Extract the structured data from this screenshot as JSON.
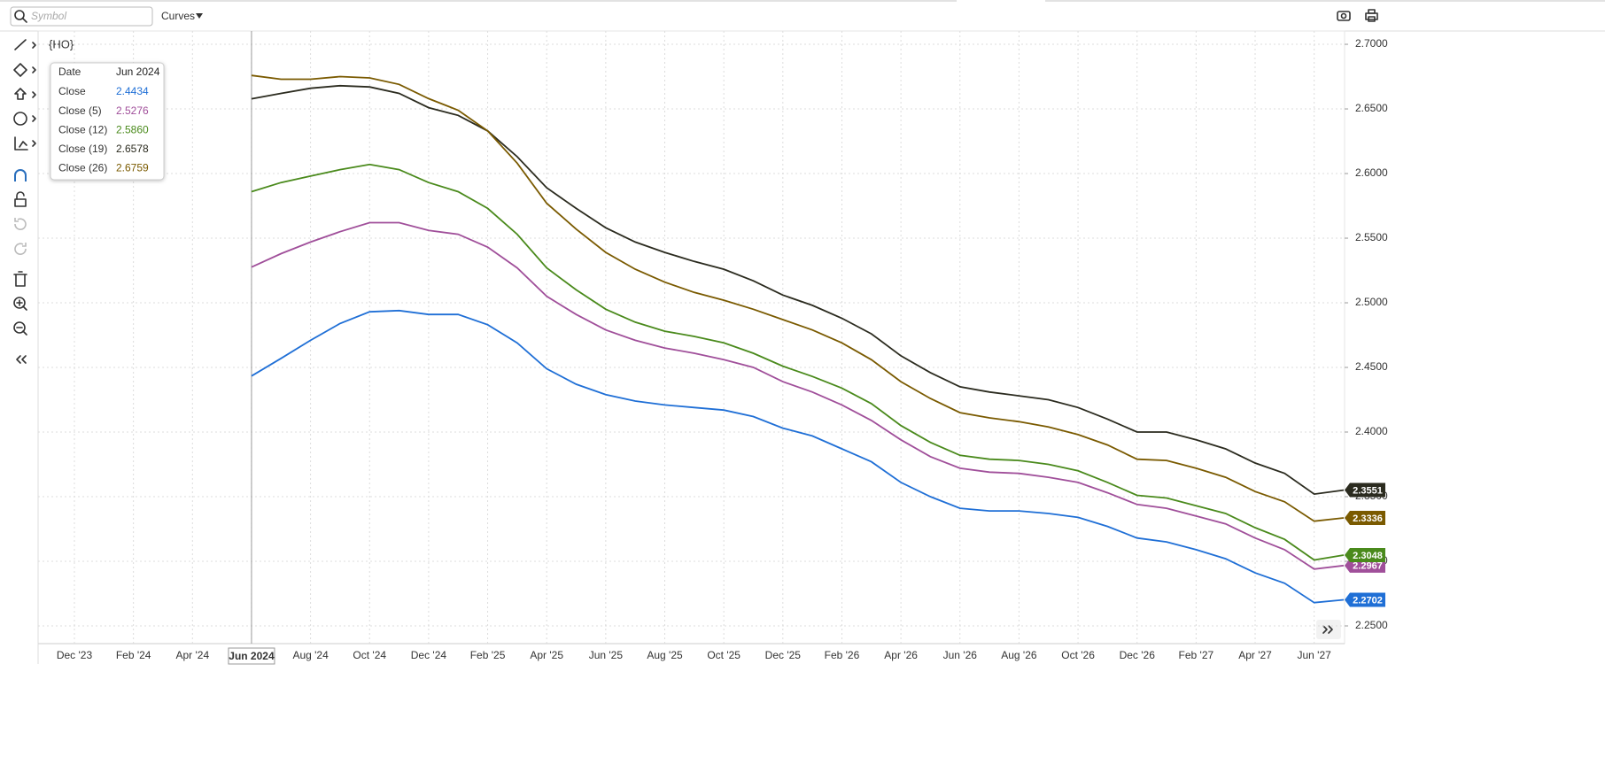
{
  "toolbar": {
    "search_placeholder": "Symbol",
    "dropdown": "Curves"
  },
  "chart_data": {
    "type": "line",
    "title": "{HO}",
    "categories": [
      "Dec '23",
      null,
      "Feb '24",
      null,
      "Apr '24",
      null,
      "Jun 2024",
      null,
      "Aug '24",
      null,
      "Oct '24",
      null,
      "Dec '24",
      null,
      "Feb '25",
      null,
      "Apr '25",
      null,
      "Jun '25",
      null,
      "Aug '25",
      null,
      "Oct '25",
      null,
      "Dec '25",
      null,
      "Feb '26",
      null,
      "Apr '26",
      null,
      "Jun '26",
      null,
      "Aug '26",
      null,
      "Oct '26",
      null,
      "Dec '26",
      null,
      "Feb '27",
      null,
      "Apr '27",
      null,
      "Jun '27",
      null
    ],
    "ylim": [
      2.2363,
      2.7103
    ],
    "yticks": [
      {
        "value": 2.25,
        "label": "2.2500"
      },
      {
        "value": 2.3,
        "label": "2.3000"
      },
      {
        "value": 2.35,
        "label": "2.3500"
      },
      {
        "value": 2.4,
        "label": "2.4000"
      },
      {
        "value": 2.45,
        "label": "2.4500"
      },
      {
        "value": 2.5,
        "label": "2.5000"
      },
      {
        "value": 2.55,
        "label": "2.5500"
      },
      {
        "value": 2.6,
        "label": "2.6000"
      },
      {
        "value": 2.65,
        "label": "2.6500"
      },
      {
        "value": 2.7,
        "label": "2.7000"
      }
    ],
    "grid": true,
    "tooltip_date_label": "Date",
    "series": [
      {
        "name": "Close",
        "color": "#1f6fd6",
        "values": [
          null,
          null,
          null,
          null,
          null,
          null,
          2.4434,
          2.457,
          2.471,
          2.484,
          2.493,
          2.494,
          2.491,
          2.491,
          2.483,
          2.469,
          2.449,
          2.437,
          2.429,
          2.424,
          2.421,
          2.419,
          2.417,
          2.412,
          2.403,
          2.397,
          2.387,
          2.377,
          2.361,
          2.35,
          2.341,
          2.339,
          2.339,
          2.337,
          2.334,
          2.327,
          2.318,
          2.315,
          2.309,
          2.302,
          2.291,
          2.283,
          2.268,
          2.2702
        ],
        "value_labels": [
          null,
          null,
          null,
          null,
          null,
          null,
          "2.4434",
          null,
          null,
          null,
          null,
          null,
          null,
          null,
          null,
          null,
          null,
          null,
          null,
          null,
          null,
          null,
          null,
          null,
          null,
          null,
          null,
          null,
          null,
          null,
          null,
          null,
          null,
          null,
          null,
          null,
          null,
          null,
          null,
          null,
          null,
          null,
          null,
          "2.2702"
        ]
      },
      {
        "name": "Close (5)",
        "color": "#a04f9a",
        "values": [
          null,
          null,
          null,
          null,
          null,
          null,
          2.5276,
          2.538,
          2.547,
          2.555,
          2.562,
          2.562,
          2.556,
          2.553,
          2.543,
          2.527,
          2.505,
          2.491,
          2.479,
          2.471,
          2.465,
          2.461,
          2.456,
          2.45,
          2.439,
          2.431,
          2.421,
          2.409,
          2.394,
          2.381,
          2.372,
          2.369,
          2.368,
          2.365,
          2.361,
          2.353,
          2.344,
          2.341,
          2.335,
          2.329,
          2.318,
          2.309,
          2.294,
          2.2967
        ],
        "value_labels": [
          null,
          null,
          null,
          null,
          null,
          null,
          "2.5276",
          null,
          null,
          null,
          null,
          null,
          null,
          null,
          null,
          null,
          null,
          null,
          null,
          null,
          null,
          null,
          null,
          null,
          null,
          null,
          null,
          null,
          null,
          null,
          null,
          null,
          null,
          null,
          null,
          null,
          null,
          null,
          null,
          null,
          null,
          null,
          null,
          "2.2967"
        ]
      },
      {
        "name": "Close (12)",
        "color": "#4a8a1c",
        "values": [
          null,
          null,
          null,
          null,
          null,
          null,
          2.586,
          2.593,
          2.598,
          2.603,
          2.607,
          2.603,
          2.593,
          2.586,
          2.573,
          2.553,
          2.527,
          2.51,
          2.495,
          2.485,
          2.478,
          2.474,
          2.469,
          2.461,
          2.451,
          2.443,
          2.434,
          2.422,
          2.405,
          2.392,
          2.382,
          2.379,
          2.378,
          2.375,
          2.37,
          2.361,
          2.351,
          2.349,
          2.343,
          2.337,
          2.326,
          2.317,
          2.301,
          2.3048
        ],
        "value_labels": [
          null,
          null,
          null,
          null,
          null,
          null,
          "2.5860",
          null,
          null,
          null,
          null,
          null,
          null,
          null,
          null,
          null,
          null,
          null,
          null,
          null,
          null,
          null,
          null,
          null,
          null,
          null,
          null,
          null,
          null,
          null,
          null,
          null,
          null,
          null,
          null,
          null,
          null,
          null,
          null,
          null,
          null,
          null,
          null,
          "2.3048"
        ]
      },
      {
        "name": "Close (19)",
        "color": "#2b2b1f",
        "values": [
          null,
          null,
          null,
          null,
          null,
          null,
          2.6578,
          2.662,
          2.666,
          2.668,
          2.667,
          2.662,
          2.651,
          2.645,
          2.633,
          2.613,
          2.589,
          2.573,
          2.558,
          2.547,
          2.539,
          2.532,
          2.526,
          2.517,
          2.506,
          2.498,
          2.488,
          2.476,
          2.459,
          2.446,
          2.435,
          2.431,
          2.428,
          2.425,
          2.419,
          2.41,
          2.4,
          2.4,
          2.394,
          2.387,
          2.376,
          2.368,
          2.352,
          2.3551
        ],
        "value_labels": [
          null,
          null,
          null,
          null,
          null,
          null,
          "2.6578",
          null,
          null,
          null,
          null,
          null,
          null,
          null,
          null,
          null,
          null,
          null,
          null,
          null,
          null,
          null,
          null,
          null,
          null,
          null,
          null,
          null,
          null,
          null,
          null,
          null,
          null,
          null,
          null,
          null,
          null,
          null,
          null,
          null,
          null,
          null,
          null,
          "2.3551"
        ]
      },
      {
        "name": "Close (26)",
        "color": "#7a5a00",
        "values": [
          null,
          null,
          null,
          null,
          null,
          null,
          2.6759,
          2.673,
          2.673,
          2.675,
          2.674,
          2.669,
          2.658,
          2.649,
          2.633,
          2.608,
          2.577,
          2.557,
          2.539,
          2.526,
          2.516,
          2.508,
          2.502,
          2.495,
          2.487,
          2.479,
          2.469,
          2.456,
          2.439,
          2.426,
          2.415,
          2.411,
          2.408,
          2.404,
          2.398,
          2.39,
          2.379,
          2.378,
          2.372,
          2.365,
          2.354,
          2.346,
          2.331,
          2.3336
        ],
        "value_labels": [
          null,
          null,
          null,
          null,
          null,
          null,
          "2.6759",
          null,
          null,
          null,
          null,
          null,
          null,
          null,
          null,
          null,
          null,
          null,
          null,
          null,
          null,
          null,
          null,
          null,
          null,
          null,
          null,
          null,
          null,
          null,
          null,
          null,
          null,
          null,
          null,
          null,
          null,
          null,
          null,
          null,
          null,
          null,
          null,
          "2.3336"
        ]
      }
    ]
  }
}
